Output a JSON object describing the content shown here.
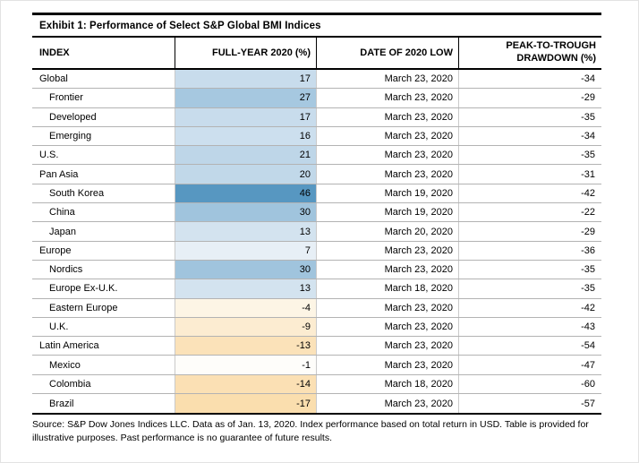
{
  "exhibit": {
    "title": "Exhibit 1: Performance of Select S&P Global BMI Indices",
    "source_note": "Source: S&P Dow Jones Indices LLC. Data as of Jan. 13, 2020. Index performance based on total return in USD. Table is provided for illustrative purposes. Past performance is no guarantee of future results."
  },
  "table": {
    "headers": {
      "index": "INDEX",
      "full_year": "FULL-YEAR 2020 (%)",
      "date_low": "DATE OF 2020 LOW",
      "drawdown_line1": "PEAK-TO-TROUGH",
      "drawdown_line2": "DRAWDOWN (%)"
    },
    "heatmap_legend": {
      "positive_color_max": "#5797c1",
      "negative_color_max": "#fadeae",
      "neutral_color": "#ffffff"
    },
    "rows": [
      {
        "index": "Global",
        "level": 0,
        "full_year_2020_pct": 17,
        "date_of_2020_low": "March 23, 2020",
        "peak_to_trough_drawdown_pct": -34,
        "cell_color": "#c8dcec"
      },
      {
        "index": "Frontier",
        "level": 1,
        "full_year_2020_pct": 27,
        "date_of_2020_low": "March 23, 2020",
        "peak_to_trough_drawdown_pct": -29,
        "cell_color": "#a6c8e0"
      },
      {
        "index": "Developed",
        "level": 1,
        "full_year_2020_pct": 17,
        "date_of_2020_low": "March 23, 2020",
        "peak_to_trough_drawdown_pct": -35,
        "cell_color": "#c8dcec"
      },
      {
        "index": "Emerging",
        "level": 1,
        "full_year_2020_pct": 16,
        "date_of_2020_low": "March 23, 2020",
        "peak_to_trough_drawdown_pct": -34,
        "cell_color": "#ccdfee"
      },
      {
        "index": "U.S.",
        "level": 0,
        "full_year_2020_pct": 21,
        "date_of_2020_low": "March 23, 2020",
        "peak_to_trough_drawdown_pct": -35,
        "cell_color": "#bed6e8"
      },
      {
        "index": "Pan Asia",
        "level": 0,
        "full_year_2020_pct": 20,
        "date_of_2020_low": "March 23, 2020",
        "peak_to_trough_drawdown_pct": -31,
        "cell_color": "#c1d8e9"
      },
      {
        "index": "South Korea",
        "level": 1,
        "full_year_2020_pct": 46,
        "date_of_2020_low": "March 19, 2020",
        "peak_to_trough_drawdown_pct": -42,
        "cell_color": "#5797c1"
      },
      {
        "index": "China",
        "level": 1,
        "full_year_2020_pct": 30,
        "date_of_2020_low": "March 19, 2020",
        "peak_to_trough_drawdown_pct": -22,
        "cell_color": "#a0c4dd"
      },
      {
        "index": "Japan",
        "level": 1,
        "full_year_2020_pct": 13,
        "date_of_2020_low": "March 20, 2020",
        "peak_to_trough_drawdown_pct": -29,
        "cell_color": "#d3e3ef"
      },
      {
        "index": "Europe",
        "level": 0,
        "full_year_2020_pct": 7,
        "date_of_2020_low": "March 23, 2020",
        "peak_to_trough_drawdown_pct": -36,
        "cell_color": "#e7eff6"
      },
      {
        "index": "Nordics",
        "level": 1,
        "full_year_2020_pct": 30,
        "date_of_2020_low": "March 23, 2020",
        "peak_to_trough_drawdown_pct": -35,
        "cell_color": "#a0c4dd"
      },
      {
        "index": "Europe Ex-U.K.",
        "level": 1,
        "full_year_2020_pct": 13,
        "date_of_2020_low": "March 18, 2020",
        "peak_to_trough_drawdown_pct": -35,
        "cell_color": "#d3e3ef"
      },
      {
        "index": "Eastern Europe",
        "level": 1,
        "full_year_2020_pct": -4,
        "date_of_2020_low": "March 23, 2020",
        "peak_to_trough_drawdown_pct": -42,
        "cell_color": "#fdf5e5"
      },
      {
        "index": "U.K.",
        "level": 1,
        "full_year_2020_pct": -9,
        "date_of_2020_low": "March 23, 2020",
        "peak_to_trough_drawdown_pct": -43,
        "cell_color": "#fcecd1"
      },
      {
        "index": "Latin America",
        "level": 0,
        "full_year_2020_pct": -13,
        "date_of_2020_low": "March 23, 2020",
        "peak_to_trough_drawdown_pct": -54,
        "cell_color": "#fbe2b9"
      },
      {
        "index": "Mexico",
        "level": 1,
        "full_year_2020_pct": -1,
        "date_of_2020_low": "March 23, 2020",
        "peak_to_trough_drawdown_pct": -47,
        "cell_color": "#fefdfa"
      },
      {
        "index": "Colombia",
        "level": 1,
        "full_year_2020_pct": -14,
        "date_of_2020_low": "March 18, 2020",
        "peak_to_trough_drawdown_pct": -60,
        "cell_color": "#fbe0b4"
      },
      {
        "index": "Brazil",
        "level": 1,
        "full_year_2020_pct": -17,
        "date_of_2020_low": "March 23, 2020",
        "peak_to_trough_drawdown_pct": -57,
        "cell_color": "#fadeae"
      }
    ]
  }
}
